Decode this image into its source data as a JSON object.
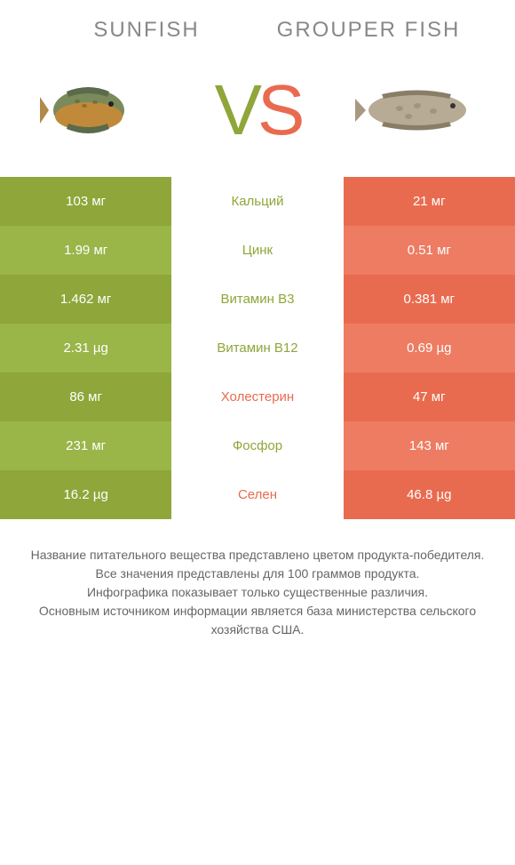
{
  "header": {
    "left_title": "Sunfish",
    "right_title": "Grouper Fish"
  },
  "vs": {
    "v": "V",
    "s": "S"
  },
  "colors": {
    "green_a": "#8ea63a",
    "green_b": "#9ab548",
    "orange_a": "#e96b4f",
    "orange_b": "#ed7c62",
    "text_dim": "#888"
  },
  "rows": [
    {
      "left": "103 мг",
      "mid": "Кальций",
      "right": "21 мг",
      "winner": "left"
    },
    {
      "left": "1.99 мг",
      "mid": "Цинк",
      "right": "0.51 мг",
      "winner": "left"
    },
    {
      "left": "1.462 мг",
      "mid": "Витамин B3",
      "right": "0.381 мг",
      "winner": "left"
    },
    {
      "left": "2.31 µg",
      "mid": "Витамин B12",
      "right": "0.69 µg",
      "winner": "left"
    },
    {
      "left": "86 мг",
      "mid": "Холестерин",
      "right": "47 мг",
      "winner": "right"
    },
    {
      "left": "231 мг",
      "mid": "Фосфор",
      "right": "143 мг",
      "winner": "left"
    },
    {
      "left": "16.2 µg",
      "mid": "Селен",
      "right": "46.8 µg",
      "winner": "right"
    }
  ],
  "footer": {
    "l1": "Название питательного вещества представлено цветом продукта-победителя.",
    "l2": "Все значения представлены для 100 граммов продукта.",
    "l3": "Инфографика показывает только существенные различия.",
    "l4": "Основным источником информации является база министерства сельского хозяйства США."
  }
}
